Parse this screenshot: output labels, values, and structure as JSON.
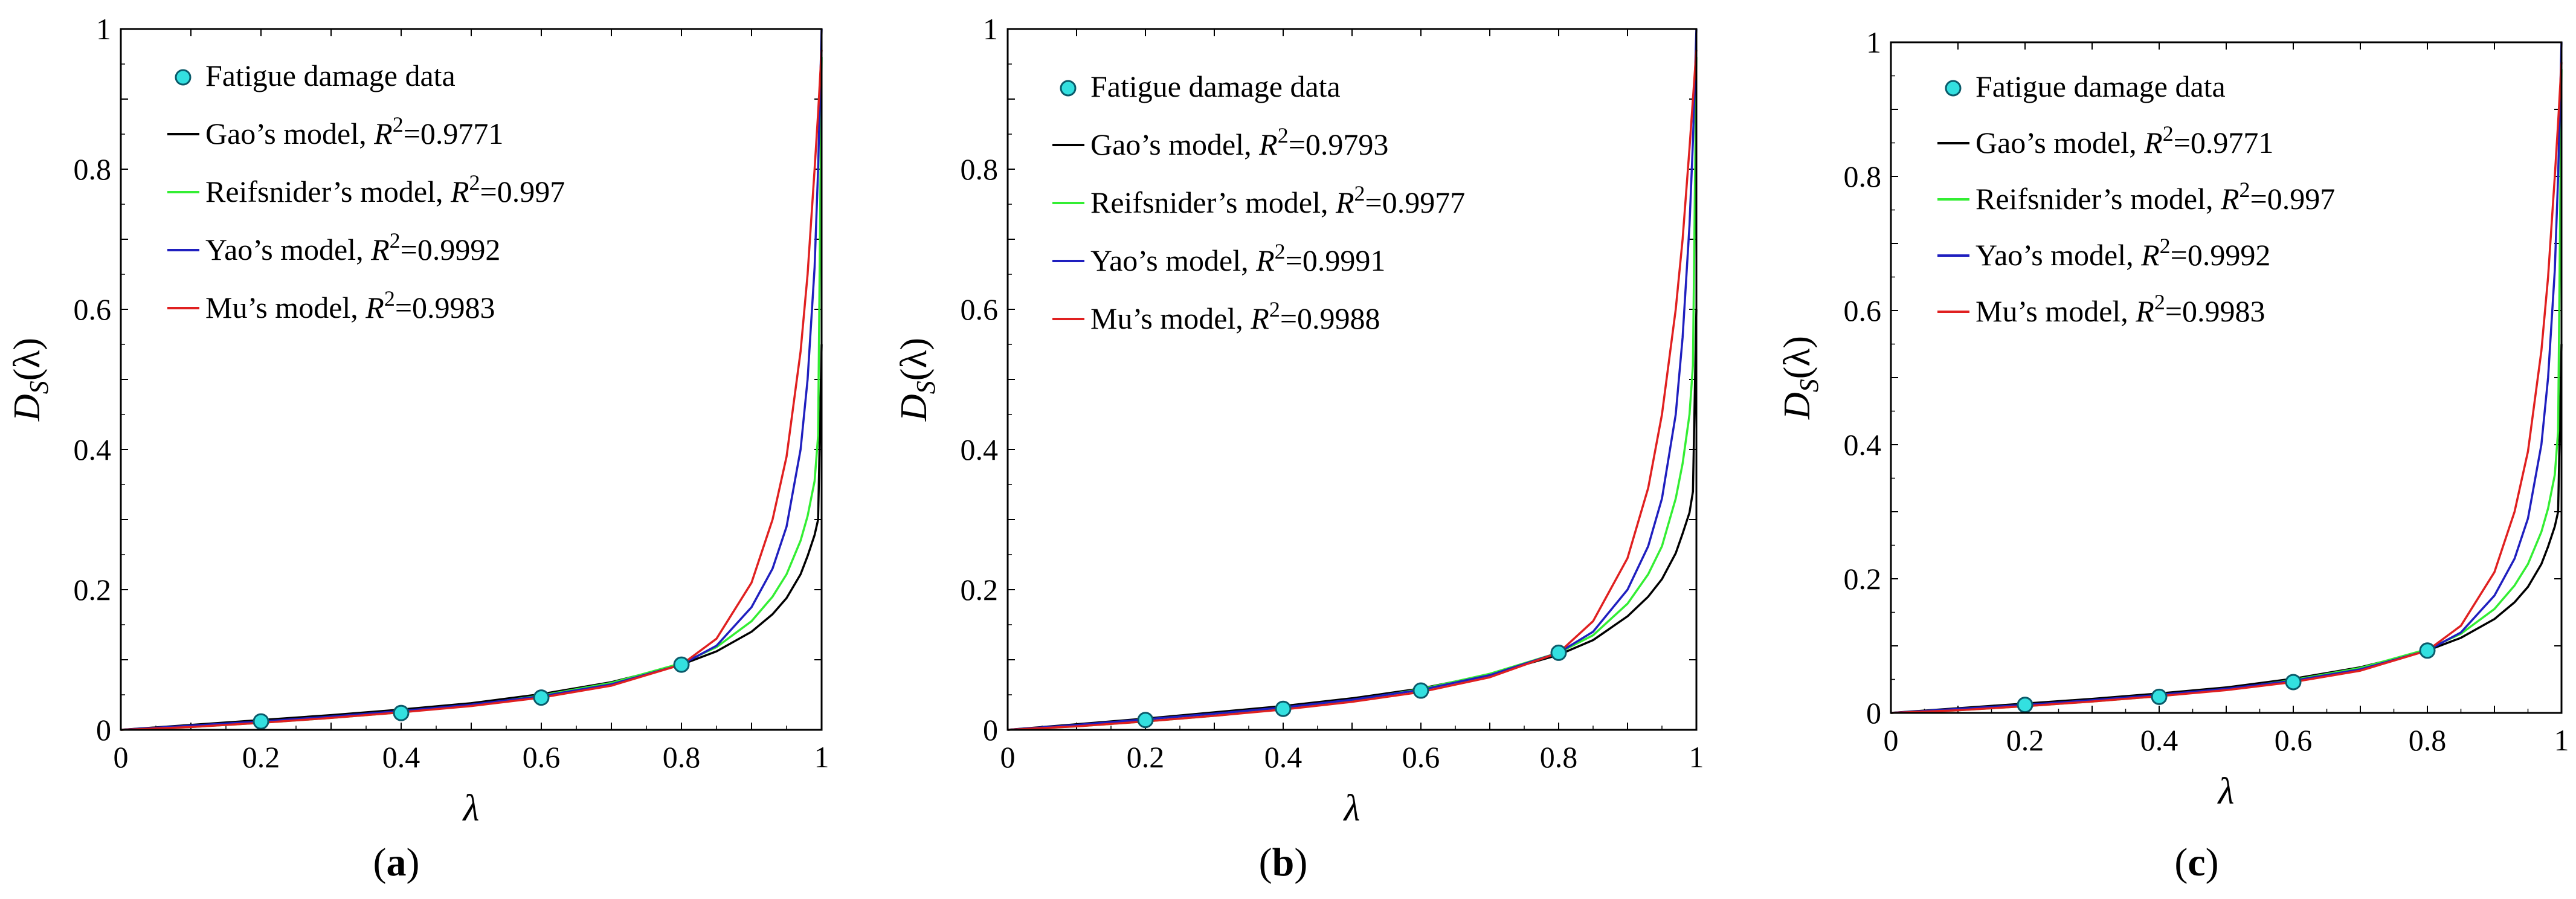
{
  "chart_data": [
    {
      "type": "line",
      "panel": "a",
      "xlabel": "λ",
      "ylabel": "D_S(λ)",
      "ylabel_main": "D",
      "ylabel_sub": "S",
      "ylabel_arg": "(λ)",
      "xlim": [
        0,
        1
      ],
      "ylim": [
        0,
        1
      ],
      "xticks": [
        0,
        0.2,
        0.4,
        0.6,
        0.8,
        1
      ],
      "xtick_labels": [
        "0",
        "0.2",
        "0.4",
        "0.6",
        "0.8",
        "1"
      ],
      "yticks": [
        0,
        0.2,
        0.4,
        0.6,
        0.8,
        1
      ],
      "ytick_labels": [
        "0",
        "0.2",
        "0.4",
        "0.6",
        "0.8",
        "1"
      ],
      "scatter": {
        "name": "Fatigue damage data",
        "x": [
          0.2,
          0.4,
          0.6,
          0.8
        ],
        "y": [
          0.012,
          0.024,
          0.046,
          0.093
        ]
      },
      "series": [
        {
          "name": "Gao's model",
          "label": "Gao’s model, ",
          "r2": "=0.9771",
          "color": "#000000",
          "x": [
            0,
            0.1,
            0.2,
            0.3,
            0.4,
            0.5,
            0.6,
            0.7,
            0.8,
            0.85,
            0.9,
            0.93,
            0.95,
            0.97,
            0.98,
            0.99,
            0.995,
            1.0
          ],
          "y": [
            0,
            0.007,
            0.014,
            0.021,
            0.029,
            0.038,
            0.051,
            0.068,
            0.093,
            0.112,
            0.14,
            0.165,
            0.188,
            0.222,
            0.248,
            0.278,
            0.3,
            0.55
          ]
        },
        {
          "name": "Reifsnider's model",
          "label": "Reifsnider’s model, ",
          "r2": "=0.997",
          "color": "#33ee33",
          "x": [
            0,
            0.1,
            0.2,
            0.3,
            0.4,
            0.5,
            0.6,
            0.7,
            0.8,
            0.85,
            0.9,
            0.93,
            0.95,
            0.97,
            0.98,
            0.99,
            0.995,
            1.0
          ],
          "y": [
            0,
            0.004,
            0.01,
            0.017,
            0.025,
            0.035,
            0.049,
            0.067,
            0.095,
            0.118,
            0.155,
            0.19,
            0.222,
            0.27,
            0.305,
            0.355,
            0.42,
            0.96
          ]
        },
        {
          "name": "Yao's model",
          "label": "Yao’s model, ",
          "r2": "=0.9992",
          "color": "#1f1fbf",
          "x": [
            0,
            0.1,
            0.2,
            0.3,
            0.4,
            0.5,
            0.6,
            0.7,
            0.8,
            0.85,
            0.9,
            0.93,
            0.95,
            0.97,
            0.98,
            0.99,
            0.995,
            1.0
          ],
          "y": [
            0,
            0.006,
            0.012,
            0.019,
            0.027,
            0.036,
            0.048,
            0.065,
            0.093,
            0.12,
            0.175,
            0.23,
            0.29,
            0.4,
            0.5,
            0.66,
            0.8,
            1.0
          ]
        },
        {
          "name": "Mu's model",
          "label": "Mu’s model, ",
          "r2": "=0.9983",
          "color": "#e02020",
          "x": [
            0,
            0.1,
            0.2,
            0.3,
            0.4,
            0.5,
            0.6,
            0.7,
            0.8,
            0.85,
            0.9,
            0.93,
            0.95,
            0.97,
            0.98,
            0.99,
            0.995,
            1.0
          ],
          "y": [
            0,
            0.004,
            0.01,
            0.017,
            0.025,
            0.034,
            0.046,
            0.063,
            0.093,
            0.13,
            0.21,
            0.3,
            0.39,
            0.54,
            0.65,
            0.8,
            0.88,
            0.97
          ]
        }
      ]
    },
    {
      "type": "line",
      "panel": "b",
      "xlabel": "λ",
      "ylabel": "D_S(λ)",
      "ylabel_main": "D",
      "ylabel_sub": "S",
      "ylabel_arg": "(λ)",
      "xlim": [
        0,
        1
      ],
      "ylim": [
        0,
        1
      ],
      "xticks": [
        0,
        0.2,
        0.4,
        0.6,
        0.8,
        1
      ],
      "xtick_labels": [
        "0",
        "0.2",
        "0.4",
        "0.6",
        "0.8",
        "1"
      ],
      "yticks": [
        0,
        0.2,
        0.4,
        0.6,
        0.8,
        1
      ],
      "ytick_labels": [
        "0",
        "0.2",
        "0.4",
        "0.6",
        "0.8",
        "1"
      ],
      "scatter": {
        "name": "Fatigue damage data",
        "x": [
          0.2,
          0.4,
          0.6,
          0.8
        ],
        "y": [
          0.014,
          0.03,
          0.056,
          0.11
        ]
      },
      "series": [
        {
          "name": "Gao's model",
          "label": "Gao’s model, ",
          "r2": "=0.9793",
          "color": "#000000",
          "x": [
            0,
            0.1,
            0.2,
            0.3,
            0.4,
            0.5,
            0.6,
            0.7,
            0.8,
            0.85,
            0.9,
            0.93,
            0.95,
            0.97,
            0.98,
            0.99,
            0.995,
            1.0
          ],
          "y": [
            0,
            0.008,
            0.016,
            0.025,
            0.034,
            0.045,
            0.059,
            0.079,
            0.107,
            0.128,
            0.162,
            0.19,
            0.215,
            0.252,
            0.28,
            0.31,
            0.34,
            0.6
          ]
        },
        {
          "name": "Reifsnider's model",
          "label": "Reifsnider’s model, ",
          "r2": "=0.9977",
          "color": "#33ee33",
          "x": [
            0,
            0.1,
            0.2,
            0.3,
            0.4,
            0.5,
            0.6,
            0.7,
            0.8,
            0.85,
            0.9,
            0.93,
            0.95,
            0.97,
            0.98,
            0.99,
            0.995,
            1.0
          ],
          "y": [
            0,
            0.005,
            0.012,
            0.02,
            0.03,
            0.042,
            0.058,
            0.08,
            0.11,
            0.135,
            0.18,
            0.222,
            0.262,
            0.33,
            0.38,
            0.45,
            0.52,
            0.96
          ]
        },
        {
          "name": "Yao's model",
          "label": "Yao’s model, ",
          "r2": "=0.9991",
          "color": "#1f1fbf",
          "x": [
            0,
            0.1,
            0.2,
            0.3,
            0.4,
            0.5,
            0.6,
            0.7,
            0.8,
            0.85,
            0.9,
            0.93,
            0.95,
            0.97,
            0.98,
            0.99,
            0.995,
            1.0
          ],
          "y": [
            0,
            0.007,
            0.015,
            0.023,
            0.032,
            0.043,
            0.057,
            0.078,
            0.11,
            0.14,
            0.2,
            0.262,
            0.33,
            0.45,
            0.56,
            0.72,
            0.84,
            1.0
          ]
        },
        {
          "name": "Mu's model",
          "label": "Mu’s model, ",
          "r2": "=0.9988",
          "color": "#e02020",
          "x": [
            0,
            0.1,
            0.2,
            0.3,
            0.4,
            0.5,
            0.6,
            0.7,
            0.8,
            0.85,
            0.9,
            0.93,
            0.95,
            0.97,
            0.98,
            0.99,
            0.995,
            1.0
          ],
          "y": [
            0,
            0.005,
            0.012,
            0.02,
            0.029,
            0.04,
            0.054,
            0.075,
            0.11,
            0.155,
            0.245,
            0.345,
            0.45,
            0.6,
            0.7,
            0.83,
            0.9,
            0.97
          ]
        }
      ]
    },
    {
      "type": "line",
      "panel": "c",
      "xlabel": "λ",
      "ylabel": "D_S(λ)",
      "ylabel_main": "D",
      "ylabel_sub": "S",
      "ylabel_arg": "(λ)",
      "xlim": [
        0,
        1
      ],
      "ylim": [
        0,
        1
      ],
      "xticks": [
        0,
        0.2,
        0.4,
        0.6,
        0.8,
        1
      ],
      "xtick_labels": [
        "0",
        "0.2",
        "0.4",
        "0.6",
        "0.8",
        "1"
      ],
      "yticks": [
        0,
        0.2,
        0.4,
        0.6,
        0.8,
        1
      ],
      "ytick_labels": [
        "0",
        "0.2",
        "0.4",
        "0.6",
        "0.8",
        "1"
      ],
      "scatter": {
        "name": "Fatigue damage data",
        "x": [
          0.2,
          0.4,
          0.6,
          0.8
        ],
        "y": [
          0.012,
          0.024,
          0.046,
          0.093
        ]
      },
      "series": [
        {
          "name": "Gao's model",
          "label": "Gao’s model, ",
          "r2": "=0.9771",
          "color": "#000000",
          "x": [
            0,
            0.1,
            0.2,
            0.3,
            0.4,
            0.5,
            0.6,
            0.7,
            0.8,
            0.85,
            0.9,
            0.93,
            0.95,
            0.97,
            0.98,
            0.99,
            0.995,
            1.0
          ],
          "y": [
            0,
            0.007,
            0.014,
            0.021,
            0.029,
            0.038,
            0.051,
            0.068,
            0.093,
            0.112,
            0.14,
            0.165,
            0.188,
            0.222,
            0.248,
            0.278,
            0.3,
            0.55
          ]
        },
        {
          "name": "Reifsnider's model",
          "label": "Reifsnider’s model, ",
          "r2": "=0.997",
          "color": "#33ee33",
          "x": [
            0,
            0.1,
            0.2,
            0.3,
            0.4,
            0.5,
            0.6,
            0.7,
            0.8,
            0.85,
            0.9,
            0.93,
            0.95,
            0.97,
            0.98,
            0.99,
            0.995,
            1.0
          ],
          "y": [
            0,
            0.004,
            0.01,
            0.017,
            0.025,
            0.035,
            0.049,
            0.067,
            0.095,
            0.118,
            0.155,
            0.19,
            0.222,
            0.27,
            0.305,
            0.355,
            0.42,
            0.96
          ]
        },
        {
          "name": "Yao's model",
          "label": "Yao’s model, ",
          "r2": "=0.9992",
          "color": "#1f1fbf",
          "x": [
            0,
            0.1,
            0.2,
            0.3,
            0.4,
            0.5,
            0.6,
            0.7,
            0.8,
            0.85,
            0.9,
            0.93,
            0.95,
            0.97,
            0.98,
            0.99,
            0.995,
            1.0
          ],
          "y": [
            0,
            0.006,
            0.012,
            0.019,
            0.027,
            0.036,
            0.048,
            0.065,
            0.093,
            0.12,
            0.175,
            0.23,
            0.29,
            0.4,
            0.5,
            0.66,
            0.8,
            1.0
          ]
        },
        {
          "name": "Mu's model",
          "label": "Mu’s model, ",
          "r2": "=0.9983",
          "color": "#e02020",
          "x": [
            0,
            0.1,
            0.2,
            0.3,
            0.4,
            0.5,
            0.6,
            0.7,
            0.8,
            0.85,
            0.9,
            0.93,
            0.95,
            0.97,
            0.98,
            0.99,
            0.995,
            1.0
          ],
          "y": [
            0,
            0.004,
            0.01,
            0.017,
            0.025,
            0.034,
            0.046,
            0.063,
            0.093,
            0.13,
            0.21,
            0.3,
            0.39,
            0.54,
            0.65,
            0.8,
            0.88,
            0.97
          ]
        }
      ]
    }
  ],
  "colors": {
    "marker_fill": "#33e0e0",
    "marker_stroke": "#0a5a6a",
    "axis": "#000000"
  },
  "legend_r2_symbol": "R",
  "legend_r2_exp": "2",
  "panel_labels": [
    {
      "open": "(",
      "letter": "a",
      "close": ")"
    },
    {
      "open": "(",
      "letter": "b",
      "close": ")"
    },
    {
      "open": "(",
      "letter": "c",
      "close": ")"
    }
  ]
}
